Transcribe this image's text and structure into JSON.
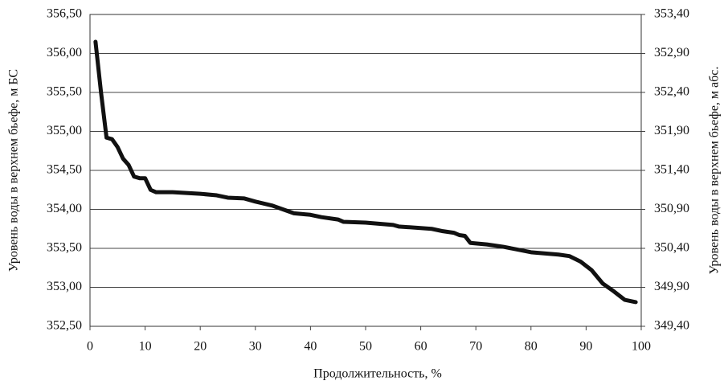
{
  "chart_data": {
    "type": "line",
    "xlabel": "Продолжительность, %",
    "ylabel": "Уровень воды в верхнем бьефе, м БС",
    "y2label": "Уровень воды в верхнем бьефе, м абс.",
    "xlim": [
      0,
      100
    ],
    "xticks": [
      0,
      10,
      20,
      30,
      40,
      50,
      60,
      70,
      80,
      90,
      100
    ],
    "ylim": [
      352.5,
      356.5
    ],
    "yticks": [
      {
        "value": 352.5,
        "label": "352,50"
      },
      {
        "value": 353.0,
        "label": "353,00"
      },
      {
        "value": 353.5,
        "label": "353,50"
      },
      {
        "value": 354.0,
        "label": "354,00"
      },
      {
        "value": 354.5,
        "label": "354,50"
      },
      {
        "value": 355.0,
        "label": "355,00"
      },
      {
        "value": 355.5,
        "label": "355,50"
      },
      {
        "value": 356.0,
        "label": "356,00"
      },
      {
        "value": 356.5,
        "label": "356,50"
      }
    ],
    "y2lim": [
      349.4,
      353.4
    ],
    "y2ticks": [
      {
        "value": 349.4,
        "label": "349,40"
      },
      {
        "value": 349.9,
        "label": "349,90"
      },
      {
        "value": 350.4,
        "label": "350,40"
      },
      {
        "value": 350.9,
        "label": "350,90"
      },
      {
        "value": 351.4,
        "label": "351,40"
      },
      {
        "value": 351.9,
        "label": "351,90"
      },
      {
        "value": 352.4,
        "label": "352,40"
      },
      {
        "value": 352.9,
        "label": "352,90"
      },
      {
        "value": 353.4,
        "label": "353,40"
      }
    ],
    "grid": true,
    "x": [
      1,
      2,
      3,
      4,
      5,
      6,
      7,
      8,
      9,
      10,
      11,
      12,
      15,
      20,
      23,
      25,
      28,
      30,
      33,
      35,
      37,
      40,
      42,
      45,
      46,
      50,
      55,
      56,
      60,
      62,
      64,
      66,
      67,
      68,
      69,
      72,
      75,
      80,
      85,
      87,
      89,
      91,
      93,
      95,
      97,
      99
    ],
    "series": [
      {
        "color": "#111111",
        "values": [
          356.15,
          355.5,
          354.92,
          354.9,
          354.8,
          354.65,
          354.57,
          354.42,
          354.4,
          354.4,
          354.25,
          354.22,
          354.22,
          354.2,
          354.18,
          354.15,
          354.14,
          354.1,
          354.05,
          354.0,
          353.95,
          353.93,
          353.9,
          353.87,
          353.84,
          353.83,
          353.8,
          353.78,
          353.76,
          353.75,
          353.72,
          353.7,
          353.67,
          353.66,
          353.57,
          353.55,
          353.52,
          353.45,
          353.42,
          353.4,
          353.33,
          353.22,
          353.05,
          352.95,
          352.84,
          352.81
        ]
      }
    ]
  }
}
